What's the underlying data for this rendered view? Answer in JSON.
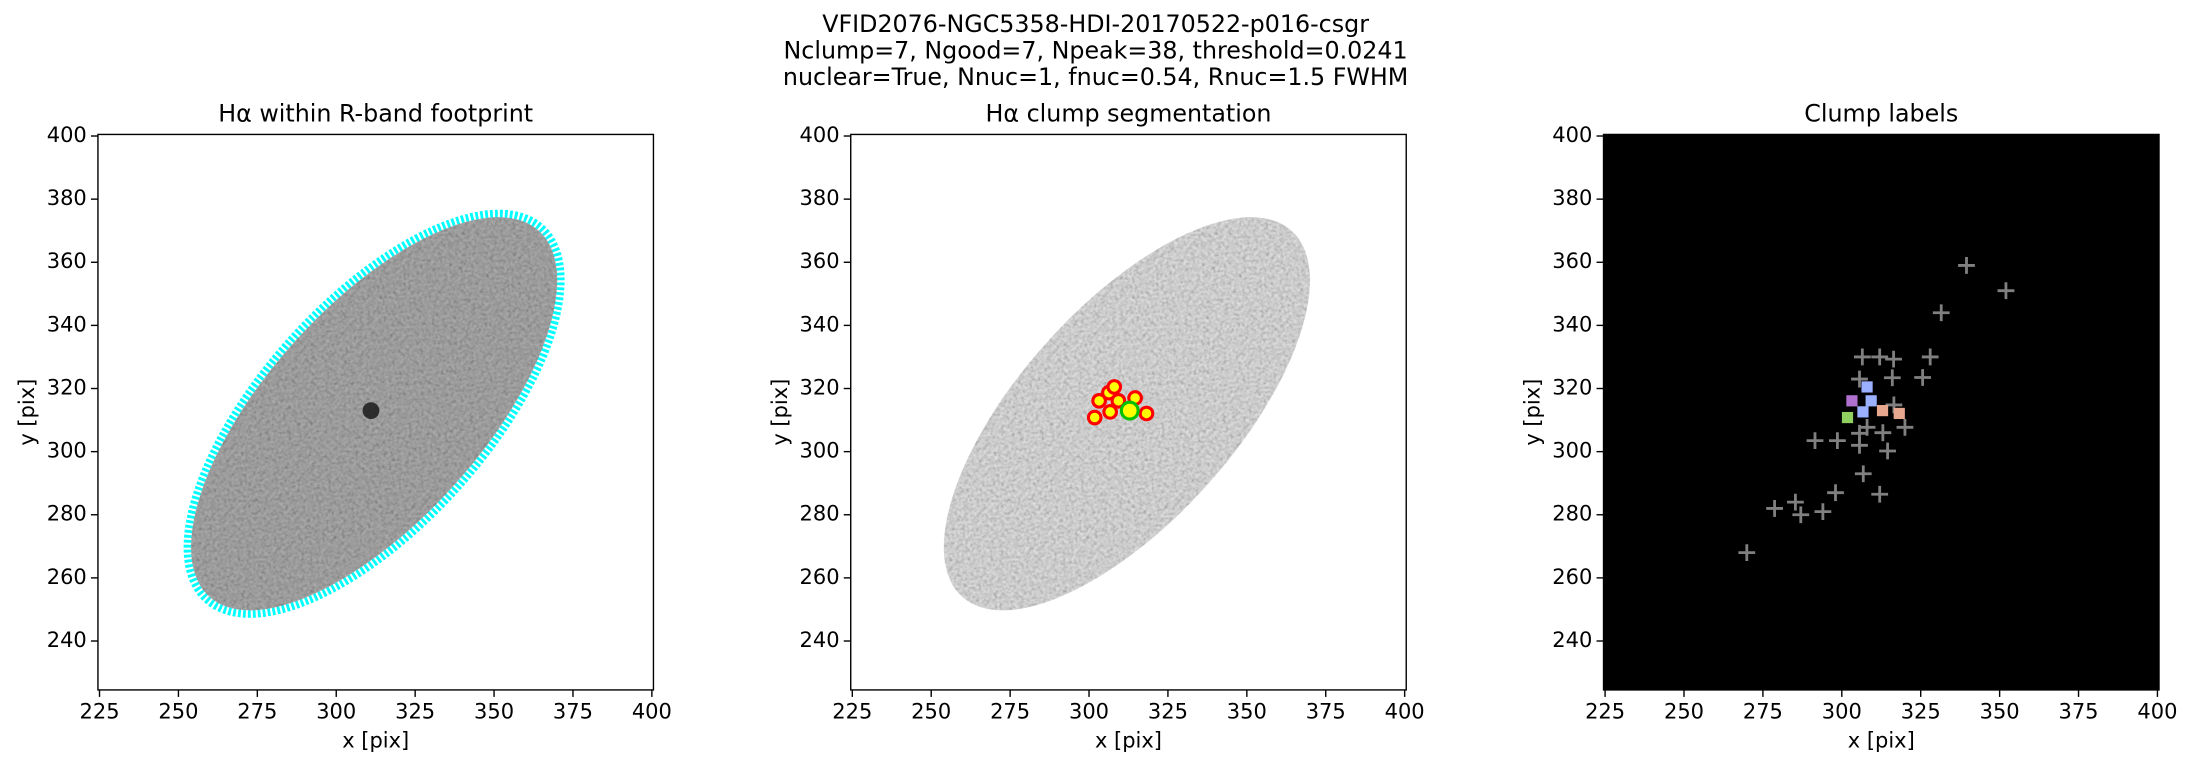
{
  "title": [
    "VFID2076-NGC5358-HDI-20170522-p016-csgr",
    "Nclump=7, Ngood=7, Npeak=38, threshold=0.0241",
    "nuclear=True, Nnuc=1, fnuc=0.54, Rnuc=1.5 FWHM"
  ],
  "chart_data": [
    {
      "type": "image",
      "title": "Hα within R-band footprint",
      "xlabel": "x [pix]",
      "ylabel": "y [pix]",
      "xlim": [
        224.5,
        400.5
      ],
      "ylim": [
        224.5,
        400.5
      ],
      "xticks": [
        225,
        250,
        275,
        300,
        325,
        350,
        375,
        400
      ],
      "yticks": [
        240,
        260,
        280,
        300,
        320,
        340,
        360,
        380,
        400
      ],
      "footprint_color": "#00ffff"
    },
    {
      "type": "scatter",
      "title": "Hα clump segmentation",
      "xlabel": "x [pix]",
      "ylabel": "y [pix]",
      "xlim": [
        224.5,
        400.5
      ],
      "ylim": [
        224.5,
        400.5
      ],
      "xticks": [
        225,
        250,
        275,
        300,
        325,
        350,
        375,
        400
      ],
      "yticks": [
        240,
        260,
        280,
        300,
        320,
        340,
        360,
        380,
        400
      ],
      "image": true,
      "series": [
        {
          "color": "#ff0000",
          "fill": "#ffff00",
          "marker": "o",
          "x": [
            301.8,
            303.2,
            306.3,
            308.0,
            309.3,
            306.7,
            314.6,
            318.2
          ],
          "values": [
            310.8,
            316.1,
            318.7,
            320.5,
            316.1,
            312.6,
            317.0,
            312.1
          ]
        },
        {
          "color": "#00c000",
          "fill": "#ffff00",
          "marker": "o",
          "x": [
            312.9
          ],
          "values": [
            313.0
          ]
        }
      ]
    },
    {
      "type": "scatter",
      "title": "Clump labels",
      "xlabel": "x [pix]",
      "ylabel": "y [pix]",
      "xlim": [
        224.5,
        400.5
      ],
      "ylim": [
        224.5,
        400.5
      ],
      "xticks": [
        225,
        250,
        275,
        300,
        325,
        350,
        375,
        400
      ],
      "yticks": [
        240,
        260,
        280,
        300,
        320,
        340,
        360,
        380,
        400
      ],
      "facecolor": "#000000",
      "series": [
        {
          "color": "#808080",
          "marker": "+",
          "x": [
            269.9,
            278.7,
            285.3,
            287,
            294,
            298,
            291.5,
            298.6,
            305.6,
            305.6,
            306.5,
            305.6,
            312,
            316.4,
            316,
            314.5,
            313,
            308,
            306.8,
            312,
            320,
            316.5,
            325.6,
            328,
            331.5,
            339.5,
            352
          ],
          "values": [
            268,
            282,
            284,
            280,
            281,
            287,
            303.5,
            303.5,
            305.8,
            302,
            330,
            323,
            330,
            329.3,
            323.4,
            300.2,
            306,
            307.7,
            293,
            286.5,
            307.7,
            314.8,
            323.5,
            330,
            344,
            359,
            351
          ]
        },
        {
          "color": "#9bb0ff",
          "marker": "s",
          "x": [
            306.7,
            309.3,
            308.0
          ],
          "values": [
            312.6,
            316.1,
            320.5
          ]
        },
        {
          "color": "#e8a890",
          "marker": "s",
          "x": [
            312.9,
            318.2
          ],
          "values": [
            313.0,
            312.1
          ]
        },
        {
          "color": "#90d060",
          "marker": "s",
          "x": [
            301.8
          ],
          "values": [
            310.8
          ]
        },
        {
          "color": "#b070d0",
          "marker": "s",
          "x": [
            303.2
          ],
          "values": [
            316.1
          ]
        }
      ]
    }
  ]
}
